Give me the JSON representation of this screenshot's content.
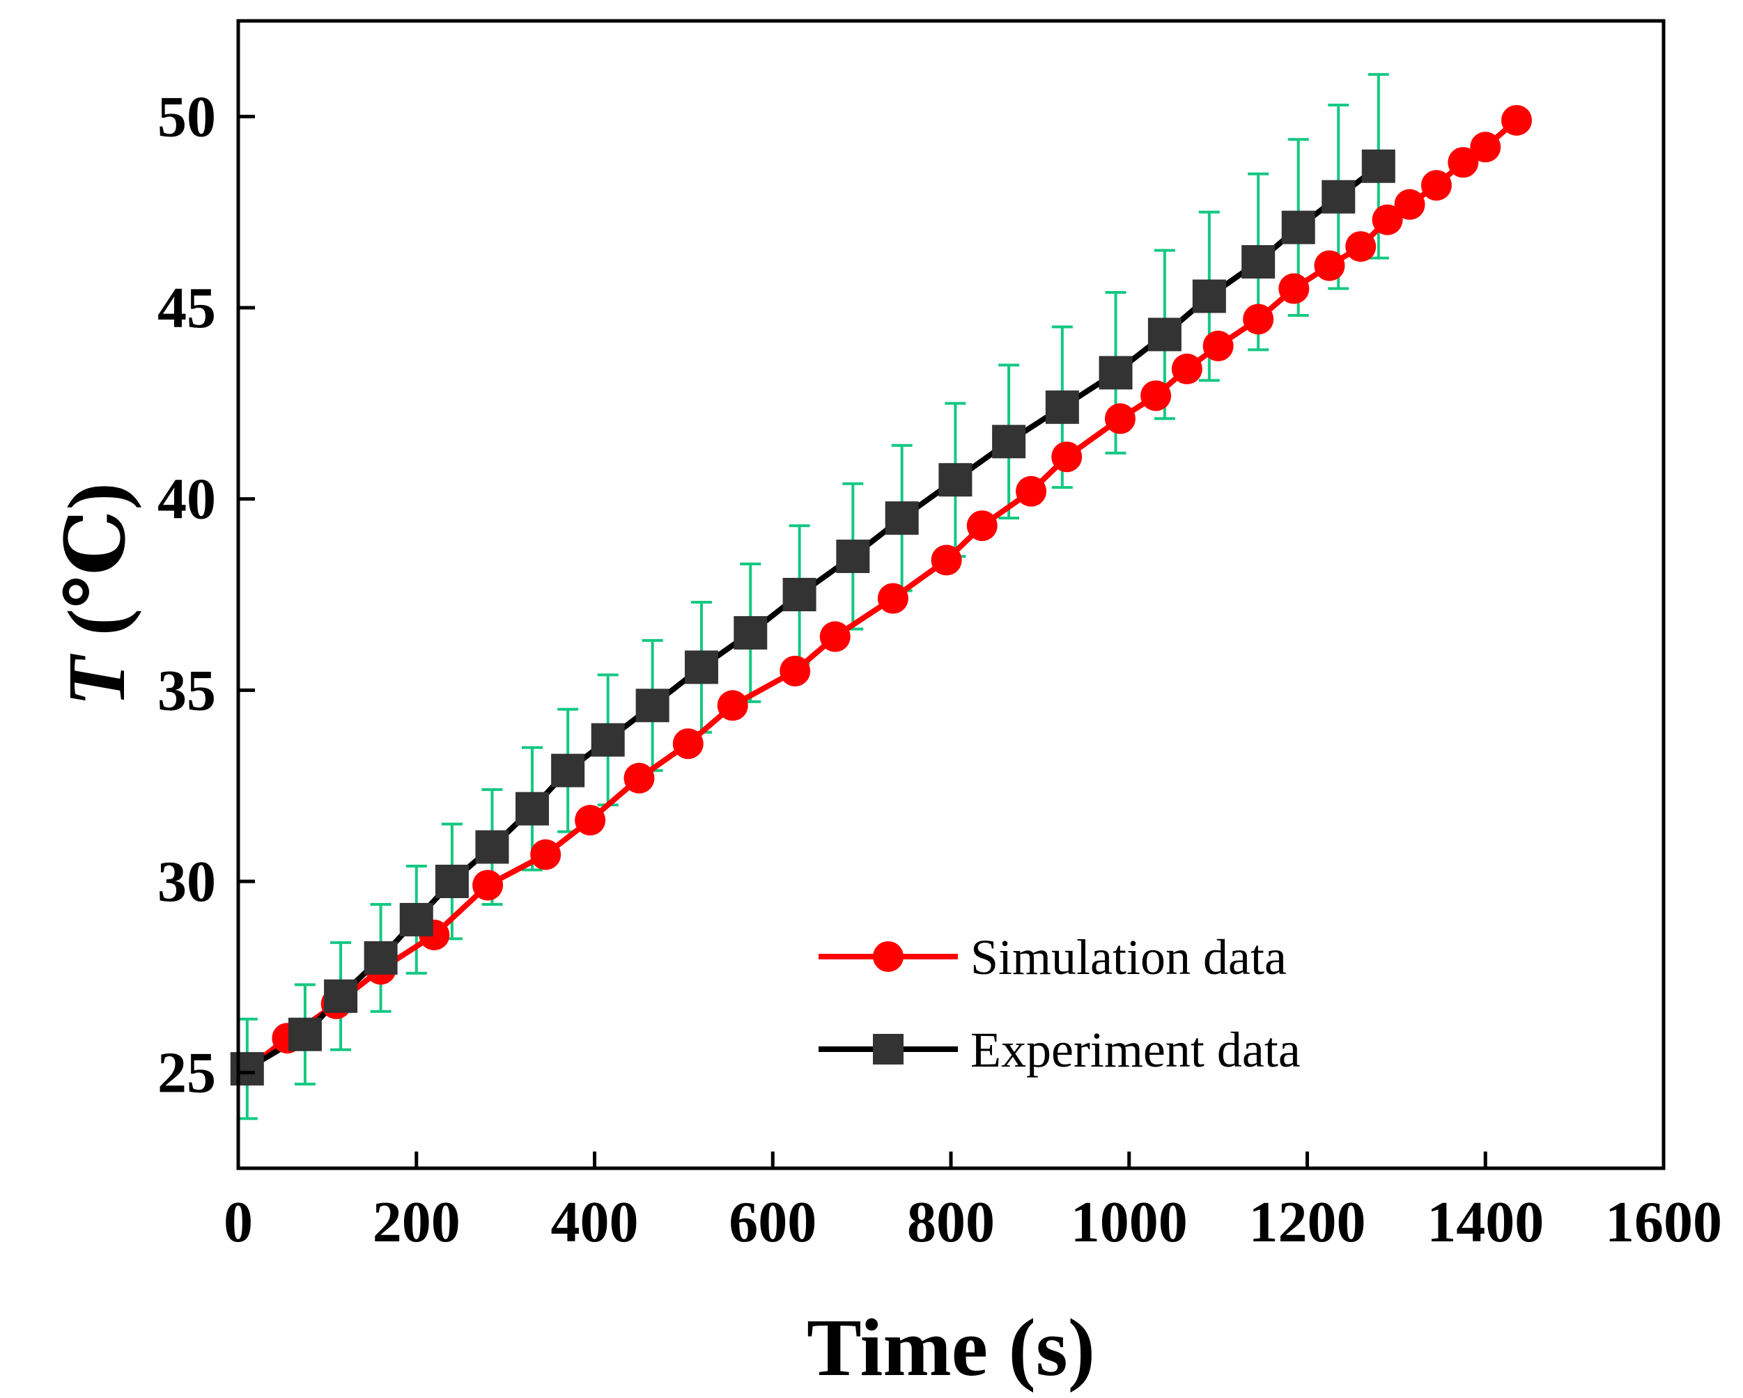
{
  "chart_data": {
    "type": "line",
    "title": "",
    "xlabel": "Time (s)",
    "ylabel_symbol": "T",
    "ylabel_unit": " (℃)",
    "xlim": [
      0,
      1600
    ],
    "ylim": [
      22.5,
      52.5
    ],
    "xticks": [
      0,
      200,
      400,
      600,
      800,
      1000,
      1200,
      1400,
      1600
    ],
    "yticks": [
      25,
      30,
      35,
      40,
      45,
      50
    ],
    "grid": false,
    "legend_position": "bottom-right",
    "series": [
      {
        "name": "Simulation data",
        "color": "#ff0000",
        "marker": "circle",
        "x": [
          10,
          55,
          110,
          160,
          220,
          280,
          345,
          395,
          450,
          505,
          555,
          625,
          670,
          735,
          795,
          835,
          890,
          930,
          990,
          1030,
          1065,
          1100,
          1145,
          1185,
          1225,
          1260,
          1290,
          1315,
          1345,
          1375,
          1400,
          1435
        ],
        "y": [
          25.1,
          25.9,
          26.8,
          27.7,
          28.6,
          29.9,
          30.7,
          31.6,
          32.7,
          33.6,
          34.6,
          35.5,
          36.4,
          37.4,
          38.4,
          39.3,
          40.2,
          41.1,
          42.1,
          42.7,
          43.4,
          44.0,
          44.7,
          45.5,
          46.1,
          46.6,
          47.3,
          47.7,
          48.2,
          48.8,
          49.2,
          49.9
        ]
      },
      {
        "name": "Experiment data",
        "color": "#000000",
        "marker": "square",
        "x": [
          10,
          75,
          115,
          160,
          200,
          240,
          285,
          330,
          370,
          415,
          465,
          520,
          575,
          630,
          690,
          745,
          805,
          865,
          925,
          985,
          1040,
          1090,
          1145,
          1190,
          1235,
          1280
        ],
        "y": [
          25.1,
          26.0,
          27.0,
          28.0,
          29.0,
          30.0,
          30.9,
          31.9,
          32.9,
          33.7,
          34.6,
          35.6,
          36.5,
          37.5,
          38.5,
          39.5,
          40.5,
          41.5,
          42.4,
          43.3,
          44.3,
          45.3,
          46.2,
          47.1,
          47.9,
          48.7
        ],
        "error": [
          1.3,
          1.3,
          1.4,
          1.4,
          1.4,
          1.5,
          1.5,
          1.6,
          1.6,
          1.7,
          1.7,
          1.7,
          1.8,
          1.8,
          1.9,
          1.9,
          2.0,
          2.0,
          2.1,
          2.1,
          2.2,
          2.2,
          2.3,
          2.3,
          2.4,
          2.4
        ],
        "error_color": "#14c882"
      }
    ]
  }
}
